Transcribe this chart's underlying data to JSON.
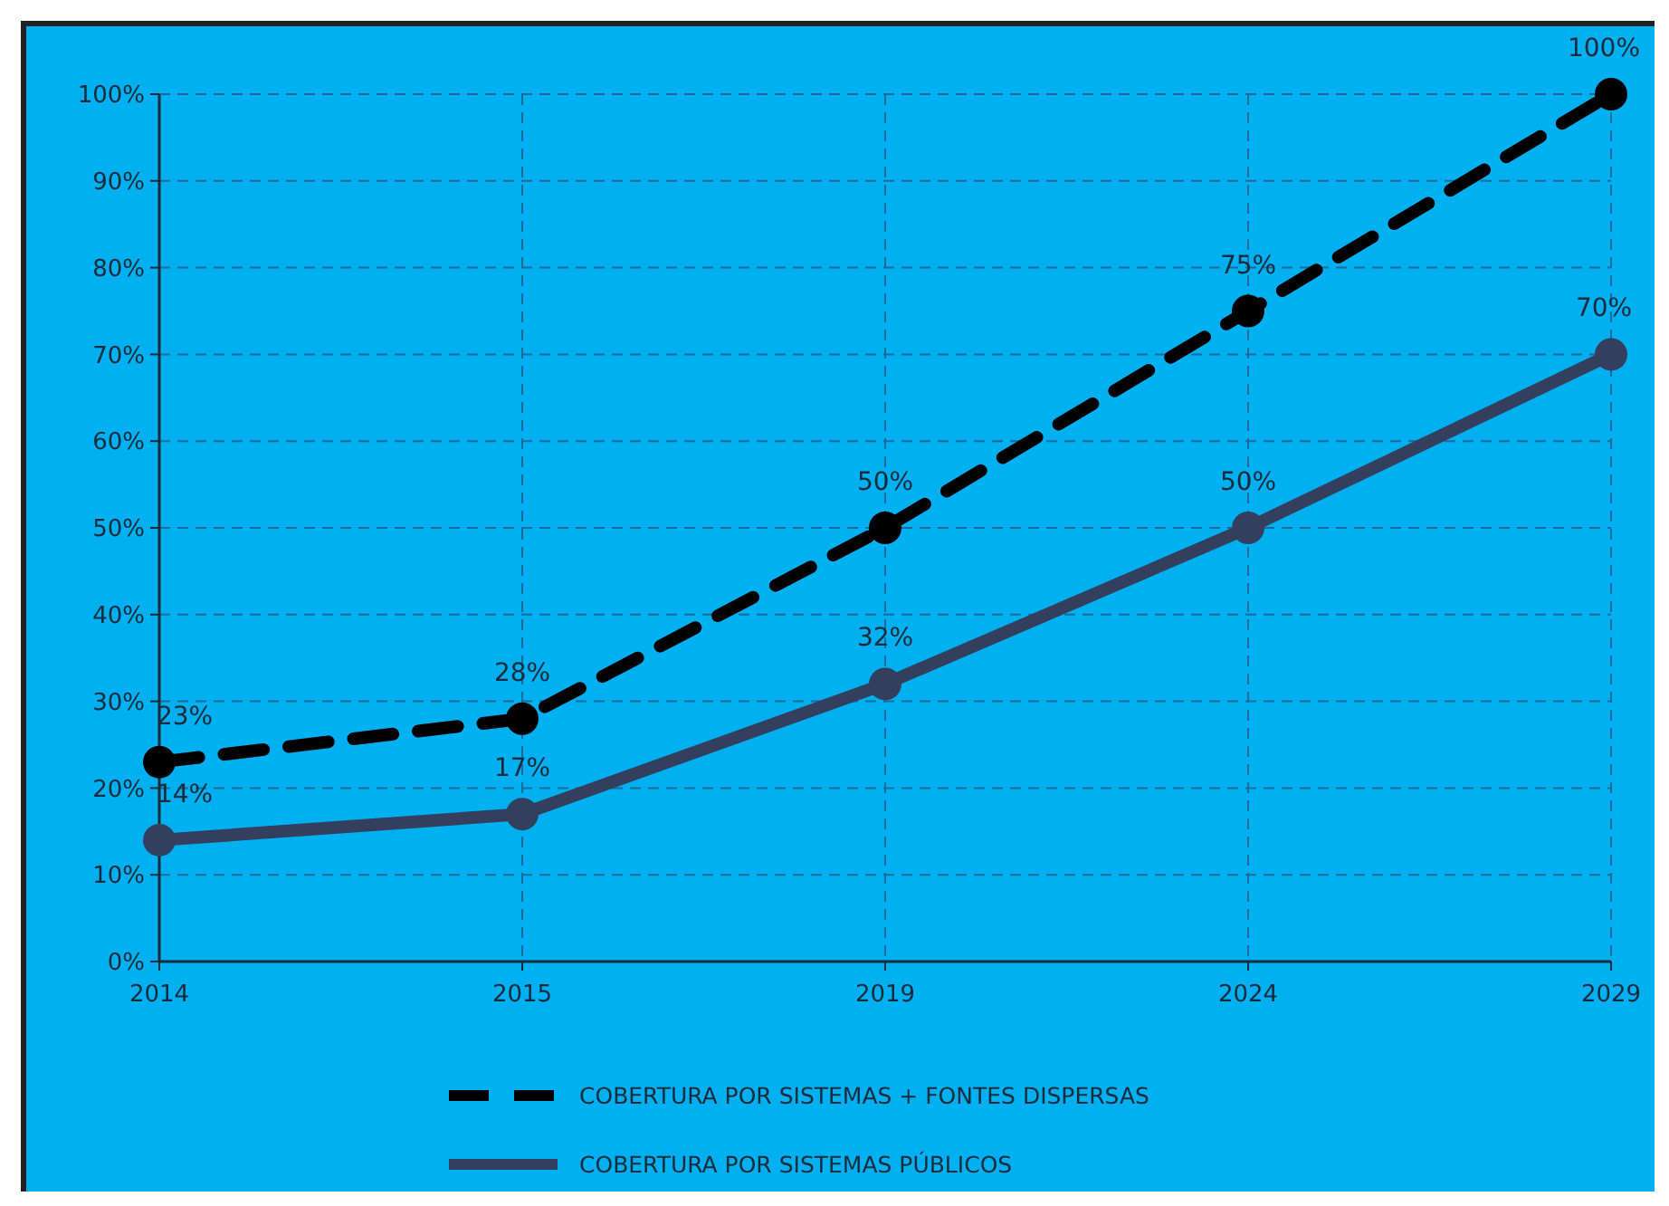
{
  "chart_data": {
    "type": "line",
    "categories": [
      "2014",
      "2015",
      "2019",
      "2024",
      "2029"
    ],
    "series": [
      {
        "name": "COBERTURA POR SISTEMAS + FONTES DISPERSAS",
        "color": "#000000",
        "values": [
          23,
          28,
          50,
          75,
          100
        ],
        "value_labels": [
          "23%",
          "28%",
          "50%",
          "75%",
          "100%"
        ],
        "line_style": "dashed"
      },
      {
        "name": "COBERTURA POR SISTEMAS PÚBLICOS",
        "color": "#333f5c",
        "values": [
          14,
          17,
          32,
          50,
          70
        ],
        "value_labels": [
          "14%",
          "17%",
          "32%",
          "50%",
          "70%"
        ],
        "line_style": "solid"
      }
    ],
    "ylim": [
      0,
      100
    ],
    "yticks": [
      {
        "value": 0,
        "label": "0%"
      },
      {
        "value": 10,
        "label": "10%"
      },
      {
        "value": 20,
        "label": "20%"
      },
      {
        "value": 30,
        "label": "30%"
      },
      {
        "value": 40,
        "label": "40%"
      },
      {
        "value": 50,
        "label": "50%"
      },
      {
        "value": 60,
        "label": "60%"
      },
      {
        "value": 70,
        "label": "70%"
      },
      {
        "value": 80,
        "label": "80%"
      },
      {
        "value": 90,
        "label": "90%"
      },
      {
        "value": 100,
        "label": "100%"
      }
    ],
    "grid": true,
    "legend": "bottom",
    "marker": "circle"
  }
}
